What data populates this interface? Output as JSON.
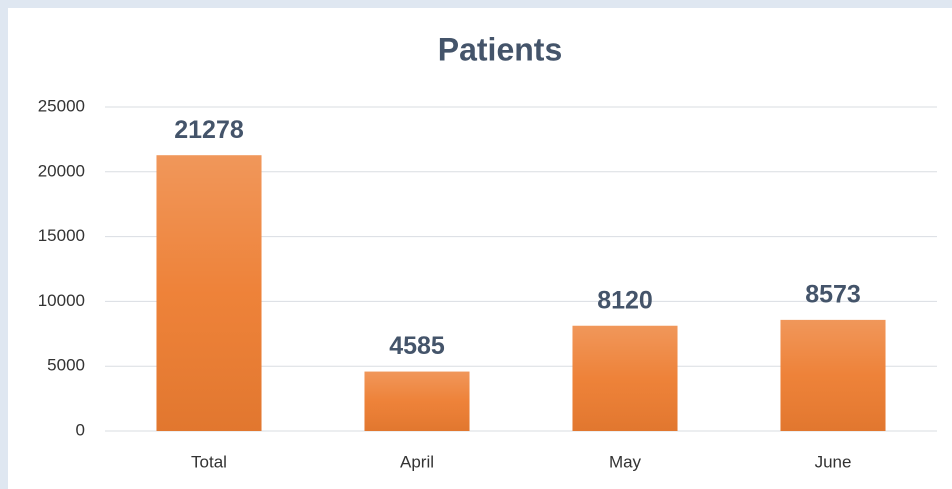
{
  "chart_data": {
    "type": "bar",
    "title": "Patients",
    "categories": [
      "Total",
      "April",
      "May",
      "June"
    ],
    "values": [
      21278,
      4585,
      8120,
      8573
    ],
    "color": "#ed7d31",
    "ylim": [
      0,
      25000
    ],
    "yticks": [
      0,
      5000,
      10000,
      15000,
      20000,
      25000
    ],
    "grid": true
  }
}
